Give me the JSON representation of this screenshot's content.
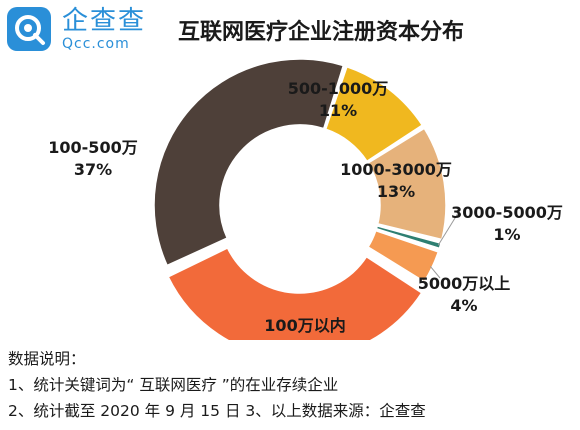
{
  "brand": {
    "name": "企查查",
    "domain": "Qcc.com"
  },
  "colors": {
    "brand": "#2a8fd8"
  },
  "chart_data": {
    "type": "pie",
    "variant": "donut",
    "title": "互联网医疗企业注册资本分布",
    "unit": "%",
    "slices": [
      {
        "label": "500-1000万",
        "value": 11,
        "value_label": "11%",
        "color": "#f0b81f"
      },
      {
        "label": "1000-3000万",
        "value": 13,
        "value_label": "13%",
        "color": "#e6b27b"
      },
      {
        "label": "3000-5000万",
        "value": 1,
        "value_label": "1%",
        "color": "#2e7f72"
      },
      {
        "label": "5000万以上",
        "value": 4,
        "value_label": "4%",
        "color": "#f59a52"
      },
      {
        "label": "100万以内",
        "value": 34,
        "value_label": "34%",
        "color": "#f26a3a"
      },
      {
        "label": "100-500万",
        "value": 37,
        "value_label": "37%",
        "color": "#4e4039"
      }
    ]
  },
  "notes": [
    "数据说明：",
    "1、统计关键词为“ 互联网医疗 ”的在业存续企业",
    "2、统计截至 2020 年 9 月 15 日  3、以上数据来源：企查查"
  ]
}
